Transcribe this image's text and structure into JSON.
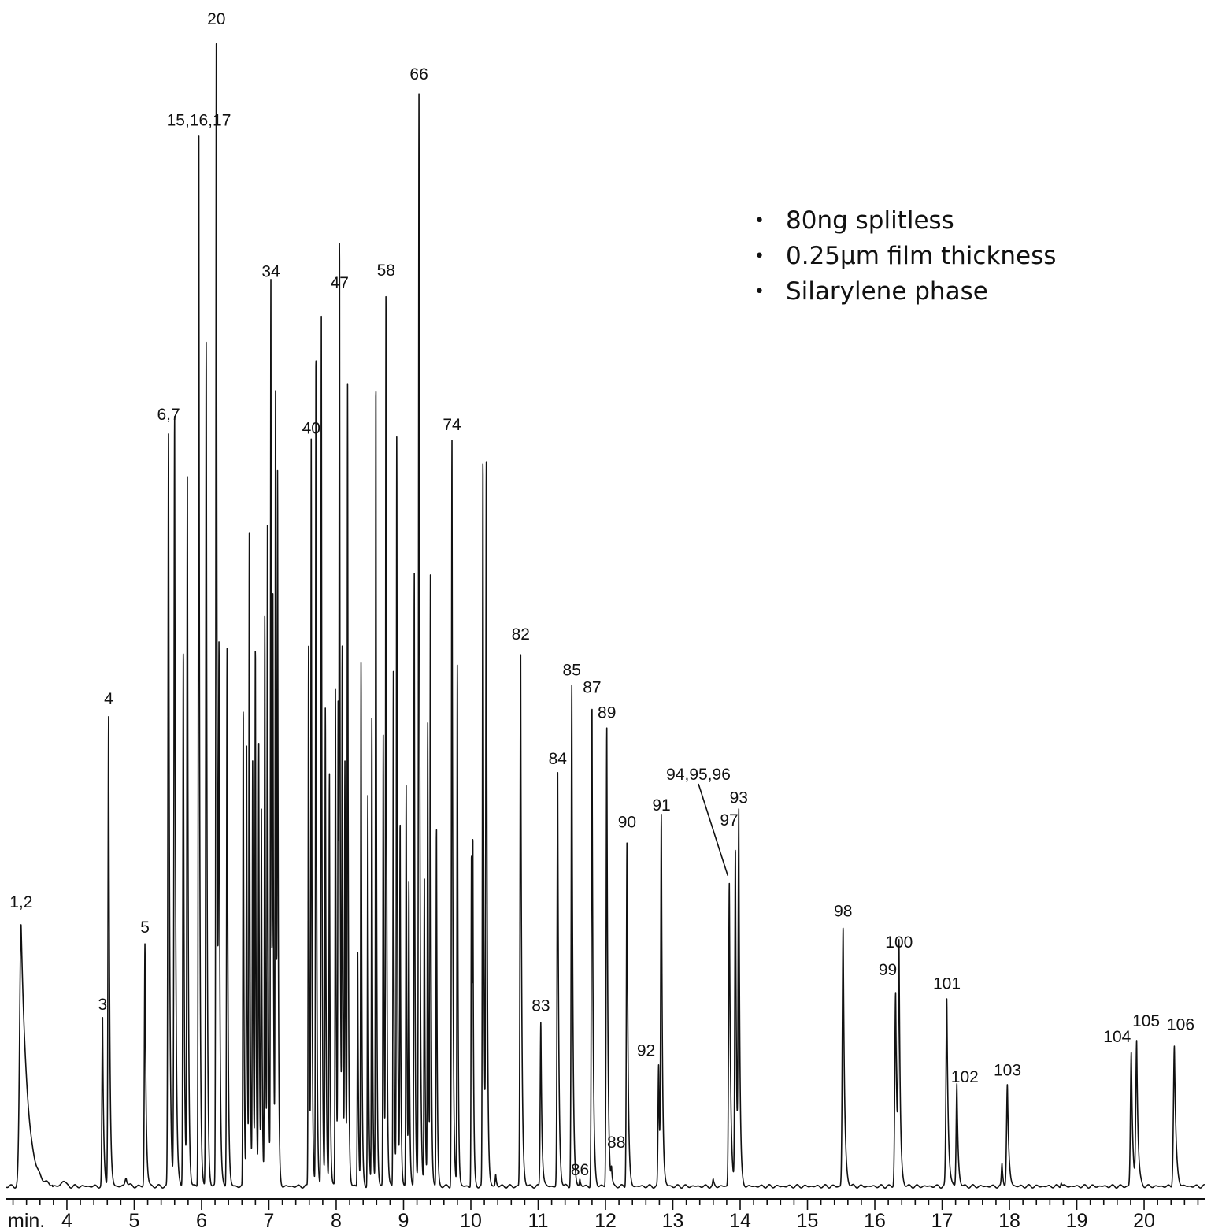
{
  "chart_data": {
    "type": "line",
    "title": "",
    "xlabel": "",
    "ylabel": "",
    "x_unit_label": "min.",
    "xlim": [
      3.1,
      20.9
    ],
    "ylim": [
      0,
      100
    ],
    "grid": false,
    "x_ticks_major": [
      4,
      5,
      6,
      7,
      8,
      9,
      10,
      11,
      12,
      13,
      14,
      15,
      16,
      17,
      18,
      19,
      20
    ],
    "x_tick_labels": [
      "4",
      "5",
      "6",
      "7",
      "8",
      "9",
      "10",
      "11",
      "12",
      "13",
      "14",
      "15",
      "16",
      "17",
      "18",
      "19",
      "20"
    ],
    "annotations": [
      "80ng splitless",
      "0.25µm film thickness",
      "Silarylene phase"
    ],
    "peaks": [
      {
        "x": 3.32,
        "y": 22.7,
        "w": 0.028,
        "label": "1,2"
      },
      {
        "x": 4.53,
        "y": 14.5,
        "w": 0.012,
        "label": "3"
      },
      {
        "x": 4.62,
        "y": 41.0,
        "w": 0.012,
        "label": "4"
      },
      {
        "x": 4.88,
        "y": 0.8,
        "w": 0.02,
        "label": ""
      },
      {
        "x": 5.16,
        "y": 21.2,
        "w": 0.012,
        "label": "5"
      },
      {
        "x": 5.51,
        "y": 65.7,
        "w": 0.012,
        "label": "6,7"
      },
      {
        "x": 5.6,
        "y": 66.6,
        "w": 0.012,
        "label": ""
      },
      {
        "x": 5.73,
        "y": 47.2,
        "w": 0.01,
        "label": ""
      },
      {
        "x": 5.79,
        "y": 61.0,
        "w": 0.01,
        "label": ""
      },
      {
        "x": 5.96,
        "y": 91.2,
        "w": 0.01,
        "label": "15,16,17"
      },
      {
        "x": 6.07,
        "y": 74.3,
        "w": 0.01,
        "label": ""
      },
      {
        "x": 6.22,
        "y": 100.0,
        "w": 0.01,
        "label": "20"
      },
      {
        "x": 6.26,
        "y": 43.0,
        "w": 0.01,
        "label": ""
      },
      {
        "x": 6.38,
        "y": 47.0,
        "w": 0.01,
        "label": ""
      },
      {
        "x": 6.62,
        "y": 42.3,
        "w": 0.008,
        "label": ""
      },
      {
        "x": 6.67,
        "y": 38.0,
        "w": 0.008,
        "label": ""
      },
      {
        "x": 6.71,
        "y": 56.0,
        "w": 0.008,
        "label": ""
      },
      {
        "x": 6.76,
        "y": 37.0,
        "w": 0.008,
        "label": ""
      },
      {
        "x": 6.8,
        "y": 47.0,
        "w": 0.008,
        "label": ""
      },
      {
        "x": 6.85,
        "y": 38.0,
        "w": 0.008,
        "label": ""
      },
      {
        "x": 6.89,
        "y": 32.0,
        "w": 0.008,
        "label": ""
      },
      {
        "x": 6.94,
        "y": 50.0,
        "w": 0.008,
        "label": ""
      },
      {
        "x": 6.98,
        "y": 58.0,
        "w": 0.008,
        "label": ""
      },
      {
        "x": 7.03,
        "y": 78.1,
        "w": 0.008,
        "label": "34"
      },
      {
        "x": 7.06,
        "y": 47.0,
        "w": 0.008,
        "label": ""
      },
      {
        "x": 7.1,
        "y": 68.7,
        "w": 0.008,
        "label": ""
      },
      {
        "x": 7.13,
        "y": 58.8,
        "w": 0.008,
        "label": ""
      },
      {
        "x": 7.59,
        "y": 47.0,
        "w": 0.008,
        "label": ""
      },
      {
        "x": 7.63,
        "y": 64.5,
        "w": 0.008,
        "label": "40"
      },
      {
        "x": 7.7,
        "y": 73.7,
        "w": 0.008,
        "label": ""
      },
      {
        "x": 7.78,
        "y": 75.8,
        "w": 0.008,
        "label": ""
      },
      {
        "x": 7.84,
        "y": 42.0,
        "w": 0.008,
        "label": ""
      },
      {
        "x": 7.9,
        "y": 36.0,
        "w": 0.008,
        "label": ""
      },
      {
        "x": 7.99,
        "y": 43.5,
        "w": 0.008,
        "label": ""
      },
      {
        "x": 8.03,
        "y": 42.0,
        "w": 0.008,
        "label": ""
      },
      {
        "x": 8.05,
        "y": 77.1,
        "w": 0.008,
        "label": "47"
      },
      {
        "x": 8.09,
        "y": 45.0,
        "w": 0.008,
        "label": ""
      },
      {
        "x": 8.13,
        "y": 36.0,
        "w": 0.008,
        "label": ""
      },
      {
        "x": 8.17,
        "y": 69.6,
        "w": 0.008,
        "label": ""
      },
      {
        "x": 8.32,
        "y": 20.5,
        "w": 0.008,
        "label": ""
      },
      {
        "x": 8.37,
        "y": 46.0,
        "w": 0.008,
        "label": ""
      },
      {
        "x": 8.47,
        "y": 34.0,
        "w": 0.008,
        "label": ""
      },
      {
        "x": 8.53,
        "y": 41.0,
        "w": 0.008,
        "label": ""
      },
      {
        "x": 8.59,
        "y": 70.9,
        "w": 0.008,
        "label": ""
      },
      {
        "x": 8.7,
        "y": 39.5,
        "w": 0.008,
        "label": ""
      },
      {
        "x": 8.74,
        "y": 78.2,
        "w": 0.008,
        "label": "58"
      },
      {
        "x": 8.85,
        "y": 45.0,
        "w": 0.008,
        "label": ""
      },
      {
        "x": 8.9,
        "y": 65.7,
        "w": 0.008,
        "label": ""
      },
      {
        "x": 8.95,
        "y": 31.6,
        "w": 0.008,
        "label": ""
      },
      {
        "x": 9.04,
        "y": 35.0,
        "w": 0.008,
        "label": ""
      },
      {
        "x": 9.08,
        "y": 26.0,
        "w": 0.008,
        "label": ""
      },
      {
        "x": 9.16,
        "y": 53.3,
        "w": 0.008,
        "label": ""
      },
      {
        "x": 9.23,
        "y": 95.2,
        "w": 0.01,
        "label": "66"
      },
      {
        "x": 9.31,
        "y": 27.0,
        "w": 0.008,
        "label": ""
      },
      {
        "x": 9.36,
        "y": 40.0,
        "w": 0.008,
        "label": ""
      },
      {
        "x": 9.4,
        "y": 52.6,
        "w": 0.008,
        "label": ""
      },
      {
        "x": 9.49,
        "y": 31.5,
        "w": 0.008,
        "label": ""
      },
      {
        "x": 9.72,
        "y": 64.8,
        "w": 0.01,
        "label": "74"
      },
      {
        "x": 9.8,
        "y": 46.1,
        "w": 0.008,
        "label": ""
      },
      {
        "x": 10.01,
        "y": 29.5,
        "w": 0.008,
        "label": ""
      },
      {
        "x": 10.03,
        "y": 26.0,
        "w": 0.008,
        "label": ""
      },
      {
        "x": 10.18,
        "y": 63.8,
        "w": 0.01,
        "label": ""
      },
      {
        "x": 10.23,
        "y": 61.6,
        "w": 0.01,
        "label": ""
      },
      {
        "x": 10.37,
        "y": 1.0,
        "w": 0.01,
        "label": ""
      },
      {
        "x": 10.74,
        "y": 46.6,
        "w": 0.012,
        "label": "82"
      },
      {
        "x": 11.04,
        "y": 14.4,
        "w": 0.012,
        "label": "83"
      },
      {
        "x": 11.29,
        "y": 35.8,
        "w": 0.012,
        "label": "84"
      },
      {
        "x": 11.5,
        "y": 43.5,
        "w": 0.012,
        "label": "85"
      },
      {
        "x": 11.62,
        "y": 0.6,
        "w": 0.01,
        "label": "86"
      },
      {
        "x": 11.8,
        "y": 42.0,
        "w": 0.012,
        "label": "87"
      },
      {
        "x": 12.02,
        "y": 39.8,
        "w": 0.012,
        "label": "89"
      },
      {
        "x": 12.09,
        "y": 1.3,
        "w": 0.01,
        "label": "88"
      },
      {
        "x": 12.32,
        "y": 30.3,
        "w": 0.012,
        "label": "90"
      },
      {
        "x": 12.79,
        "y": 10.5,
        "w": 0.012,
        "label": "92"
      },
      {
        "x": 12.83,
        "y": 31.8,
        "w": 0.012,
        "label": "91"
      },
      {
        "x": 13.6,
        "y": 0.5,
        "w": 0.01,
        "label": ""
      },
      {
        "x": 13.84,
        "y": 26.4,
        "w": 0.014,
        "label": "94,95,96"
      },
      {
        "x": 13.93,
        "y": 29.4,
        "w": 0.012,
        "label": "97"
      },
      {
        "x": 13.98,
        "y": 31.6,
        "w": 0.012,
        "label": "93"
      },
      {
        "x": 15.53,
        "y": 22.6,
        "w": 0.016,
        "label": "98"
      },
      {
        "x": 16.31,
        "y": 16.8,
        "w": 0.016,
        "label": "99"
      },
      {
        "x": 16.36,
        "y": 19.9,
        "w": 0.014,
        "label": "100"
      },
      {
        "x": 17.07,
        "y": 16.3,
        "w": 0.016,
        "label": "101"
      },
      {
        "x": 17.22,
        "y": 8.9,
        "w": 0.014,
        "label": "102"
      },
      {
        "x": 17.89,
        "y": 1.9,
        "w": 0.012,
        "label": ""
      },
      {
        "x": 17.97,
        "y": 8.8,
        "w": 0.016,
        "label": "103"
      },
      {
        "x": 18.77,
        "y": 0.4,
        "w": 0.012,
        "label": ""
      },
      {
        "x": 19.81,
        "y": 11.7,
        "w": 0.016,
        "label": "104"
      },
      {
        "x": 19.89,
        "y": 12.5,
        "w": 0.016,
        "label": "105"
      },
      {
        "x": 20.45,
        "y": 12.2,
        "w": 0.018,
        "label": "106"
      }
    ],
    "leader_line": {
      "label": "94,95,96",
      "from_label": true,
      "to_peak_x": 13.84
    }
  }
}
